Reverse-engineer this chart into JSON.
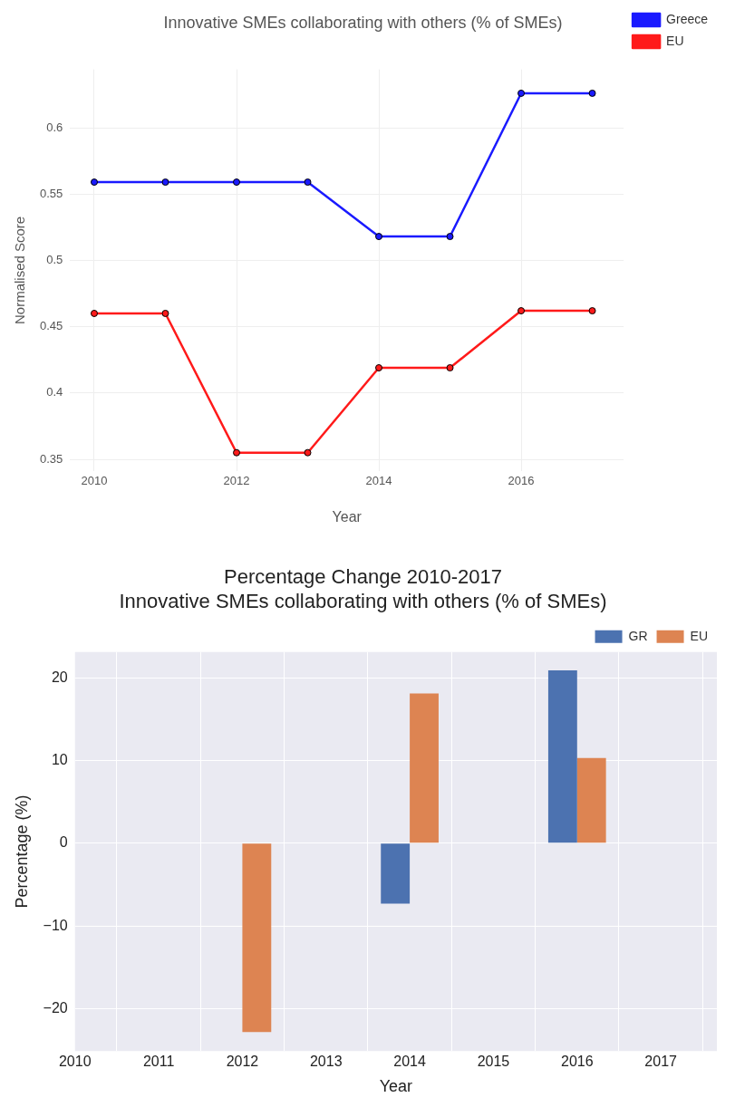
{
  "chart_data": [
    {
      "type": "line",
      "title": "Innovative SMEs collaborating with others (% of SMEs)",
      "xlabel": "Year",
      "ylabel": "Normalised Score",
      "x": [
        2010,
        2011,
        2012,
        2013,
        2014,
        2015,
        2016,
        2017
      ],
      "xlim": [
        2009.66,
        2017.44
      ],
      "xticks": [
        2010,
        2012,
        2014,
        2016
      ],
      "ylim": [
        0.341,
        0.644
      ],
      "yticks": [
        0.35,
        0.4,
        0.45,
        0.5,
        0.55,
        0.6
      ],
      "grid": true,
      "legend": "right",
      "marker": "circle",
      "line_style": "solid",
      "series": [
        {
          "name": "Greece",
          "color": "#1a1aff",
          "values": [
            0.559,
            0.559,
            0.559,
            0.559,
            0.518,
            0.518,
            0.626,
            0.626
          ]
        },
        {
          "name": "EU",
          "color": "#ff1a1a",
          "values": [
            0.46,
            0.46,
            0.355,
            0.355,
            0.419,
            0.419,
            0.462,
            0.462
          ]
        }
      ]
    },
    {
      "type": "bar",
      "title": "Percentage Change 2010-2017",
      "subtitle": "Innovative SMEs collaborating with others (% of SMEs)",
      "xlabel": "Year",
      "ylabel": "Percentage (%)",
      "x": [
        2010,
        2011,
        2012,
        2013,
        2014,
        2015,
        2016,
        2017
      ],
      "xlim": [
        2010,
        2017.67
      ],
      "xticks": [
        2010,
        2011,
        2012,
        2013,
        2014,
        2015,
        2016,
        2017
      ],
      "ylim": [
        -25.1,
        23.1
      ],
      "yticks": [
        {
          "value": -20,
          "label": "−20"
        },
        {
          "value": -10,
          "label": "−10"
        },
        0,
        10,
        20
      ],
      "grid": true,
      "legend": "top right",
      "series": [
        {
          "name": "GR",
          "color": "#4c72b0",
          "values": [
            0,
            0,
            0,
            0,
            -7.3,
            0,
            20.9,
            0
          ]
        },
        {
          "name": "EU",
          "color": "#dd8452",
          "values": [
            0,
            0,
            -22.8,
            0,
            18.1,
            0,
            10.3,
            0
          ]
        }
      ]
    }
  ]
}
